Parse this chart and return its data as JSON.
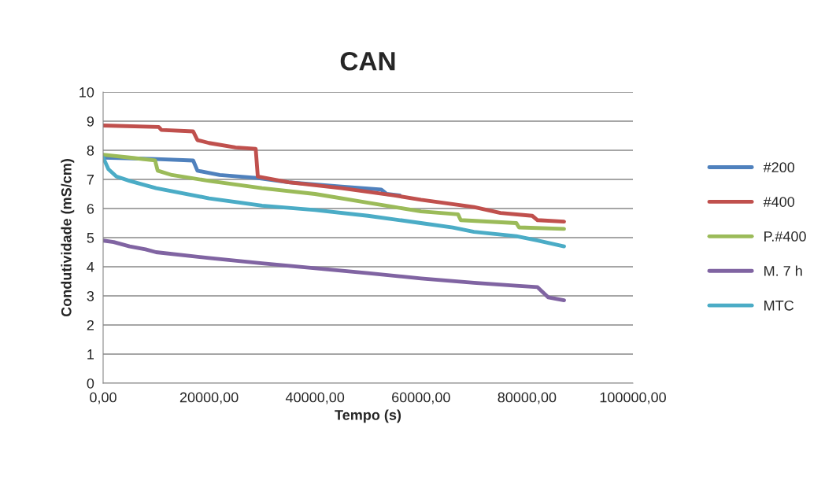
{
  "chart_data": {
    "type": "line",
    "title": "CAN",
    "xlabel": "Tempo (s)",
    "ylabel": "Condutividade (mS/cm)",
    "xlim": [
      0,
      100000
    ],
    "xticks": [
      {
        "value": 0,
        "label": "0,00"
      },
      {
        "value": 20000,
        "label": "20000,00"
      },
      {
        "value": 40000,
        "label": "40000,00"
      },
      {
        "value": 60000,
        "label": "60000,00"
      },
      {
        "value": 80000,
        "label": "80000,00"
      },
      {
        "value": 100000,
        "label": "100000,00"
      }
    ],
    "ylim": [
      0,
      10
    ],
    "yticks": [
      0,
      1,
      2,
      3,
      4,
      5,
      6,
      7,
      8,
      9,
      10
    ],
    "grid": "y",
    "legend": "right",
    "marker": "none",
    "line_style": "solid",
    "series": [
      {
        "name": "#200",
        "color": "#4f81bd",
        "x": [
          0,
          10000,
          17000,
          17800,
          22000,
          29000,
          35000,
          45000,
          52500,
          53500,
          56000
        ],
        "values": [
          7.75,
          7.7,
          7.65,
          7.3,
          7.15,
          7.05,
          6.9,
          6.75,
          6.65,
          6.5,
          6.45
        ]
      },
      {
        "name": "#400",
        "color": "#c0504d",
        "x": [
          0,
          10500,
          11000,
          17000,
          17800,
          20000,
          25000,
          28800,
          29200,
          35000,
          45000,
          55000,
          60000,
          70000,
          75000,
          81000,
          82000,
          87000
        ],
        "values": [
          8.85,
          8.8,
          8.7,
          8.65,
          8.35,
          8.25,
          8.1,
          8.05,
          7.1,
          6.9,
          6.7,
          6.45,
          6.3,
          6.05,
          5.85,
          5.75,
          5.6,
          5.55
        ]
      },
      {
        "name": "P.#400",
        "color": "#9bbb59",
        "x": [
          0,
          5000,
          9800,
          10300,
          13000,
          20000,
          30000,
          40000,
          50000,
          55000,
          60000,
          67000,
          67500,
          78000,
          78500,
          87000
        ],
        "values": [
          7.85,
          7.75,
          7.65,
          7.3,
          7.15,
          6.95,
          6.7,
          6.5,
          6.2,
          6.05,
          5.9,
          5.8,
          5.6,
          5.5,
          5.35,
          5.3
        ]
      },
      {
        "name": "M. 7 h",
        "color": "#8064a2",
        "x": [
          0,
          2000,
          5000,
          8000,
          10000,
          20000,
          30000,
          40000,
          50000,
          60000,
          70000,
          78000,
          82000,
          84000,
          87000
        ],
        "values": [
          4.9,
          4.85,
          4.7,
          4.6,
          4.5,
          4.3,
          4.12,
          3.95,
          3.78,
          3.6,
          3.45,
          3.35,
          3.3,
          2.95,
          2.85
        ]
      },
      {
        "name": "MTC",
        "color": "#4bacc6",
        "x": [
          0,
          1000,
          2500,
          5000,
          10000,
          20000,
          30000,
          40000,
          50000,
          60000,
          66000,
          70000,
          78000,
          82000,
          87000
        ],
        "values": [
          7.75,
          7.35,
          7.1,
          6.95,
          6.7,
          6.35,
          6.1,
          5.95,
          5.75,
          5.5,
          5.35,
          5.2,
          5.05,
          4.9,
          4.7
        ]
      }
    ]
  }
}
